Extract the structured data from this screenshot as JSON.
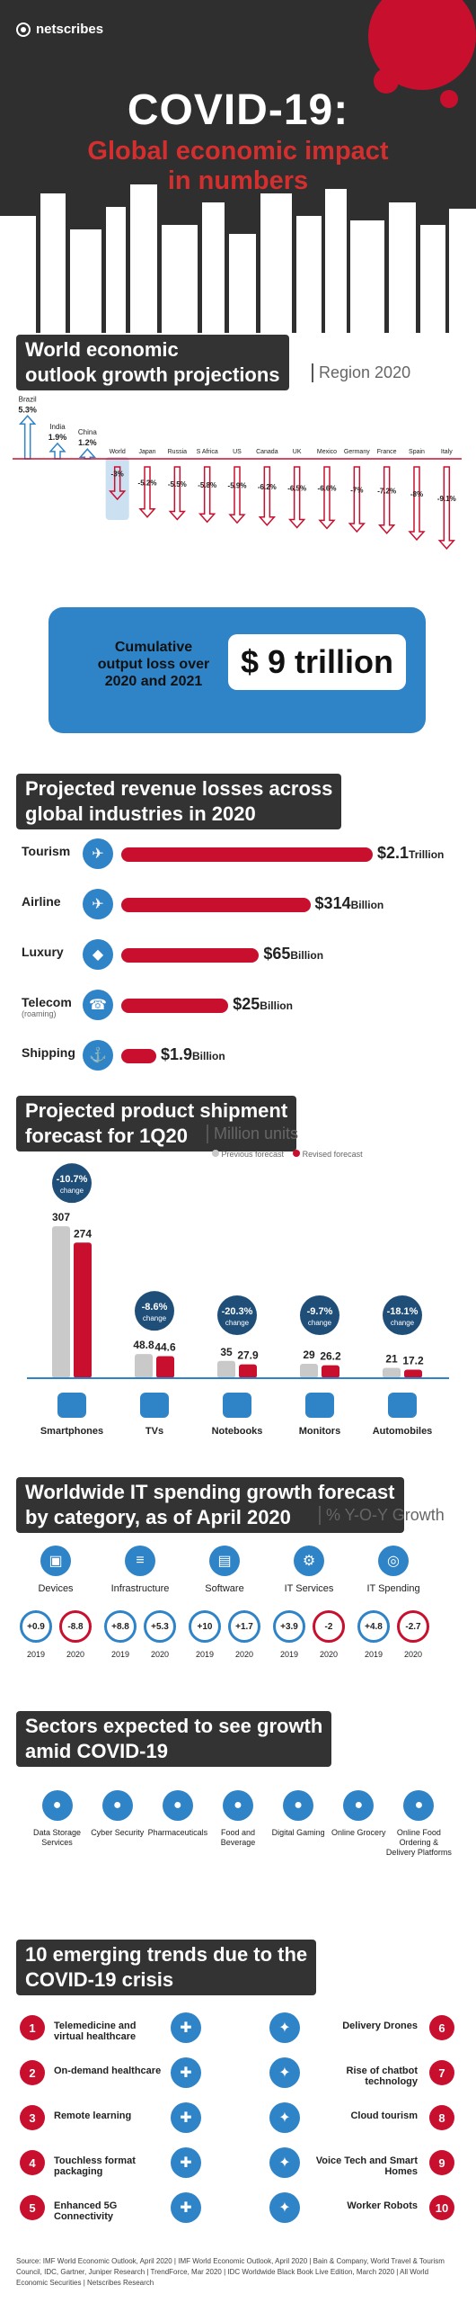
{
  "header": {
    "logo_text": "netscribes",
    "title": "COVID-19:",
    "subtitle_line1": "Global economic impact",
    "subtitle_line2": "in numbers"
  },
  "section_outlook": {
    "title_line1": "World economic",
    "title_line2": "outlook growth projections",
    "note": "Region  2020",
    "cumulative_text_line1": "Cumulative",
    "cumulative_text_line2": "output loss over",
    "cumulative_text_line3": "2020 and 2021",
    "cumulative_value": "$ 9 trillion"
  },
  "section_revenue": {
    "title_line1": "Projected revenue losses across",
    "title_line2": "global industries in 2020",
    "items": [
      {
        "label": "Tourism",
        "value": "$2.1",
        "unit": "Trillion"
      },
      {
        "label": "Airline",
        "value": "$314",
        "unit": "Billion"
      },
      {
        "label": "Luxury",
        "value": "$65",
        "unit": "Billion"
      },
      {
        "label": "Telecom",
        "sub": "(roaming)",
        "value": "$25",
        "unit": "Billion"
      },
      {
        "label": "Shipping",
        "value": "$1.9",
        "unit": "Billion"
      }
    ]
  },
  "section_shipment": {
    "title_line1": "Projected product shipment",
    "title_line2": "forecast for 1Q20",
    "note": "Million units",
    "legend_previous": "Previous forecast",
    "legend_revised": "Revised forecast"
  },
  "section_it": {
    "title_line1": "Worldwide IT spending growth forecast",
    "title_line2": "by category, as of April 2020",
    "note": "% Y-O-Y Growth",
    "categories": [
      {
        "label": "Devices",
        "y2019": "+0.9",
        "y2020": "-8.8"
      },
      {
        "label": "Infrastructure",
        "y2019": "+8.8",
        "y2020": "+5.3"
      },
      {
        "label": "Software",
        "y2019": "+10",
        "y2020": "+1.7"
      },
      {
        "label": "IT Services",
        "y2019": "+3.9",
        "y2020": "-2"
      },
      {
        "label": "IT Spending",
        "y2019": "+4.8",
        "y2020": "-2.7"
      }
    ],
    "year1": "2019",
    "year2": "2020"
  },
  "section_sectors": {
    "title_line1": "Sectors expected to see growth",
    "title_line2": "amid COVID-19",
    "items": [
      "Data Storage Services",
      "Cyber Security",
      "Pharmaceuticals",
      "Food and Beverage",
      "Digital Gaming",
      "Online Grocery",
      "Online Food Ordering & Delivery Platforms"
    ]
  },
  "section_trends": {
    "title_line1": "10 emerging trends due to the",
    "title_line2": "COVID-19 crisis",
    "left": [
      "Telemedicine and virtual healthcare",
      "On-demand healthcare",
      "Remote learning",
      "Touchless format packaging",
      "Enhanced 5G Connectivity"
    ],
    "right": [
      "Delivery Drones",
      "Rise of chatbot technology",
      "Cloud tourism",
      "Voice Tech and Smart Homes",
      "Worker Robots"
    ]
  },
  "footer": {
    "source": "Source: IMF World Economic Outlook, April 2020 | IMF World Economic Outlook, April 2020 | Bain & Company, World Travel & Tourism Council, IDC, Gartner, Juniper Research | TrendForce, Mar 2020 | IDC Worldwide Black Book Live Edition, March 2020 | All World Economic Securities | Netscribes Research"
  },
  "colors": {
    "accent_red": "#c8102e",
    "accent_blue": "#2f83c7",
    "dark": "#333333",
    "gray_bar": "#c9c9c9"
  },
  "chart_data": [
    {
      "type": "bar",
      "title": "World economic outlook growth projections",
      "subtitle": "Region 2020",
      "categories": [
        "Brazil",
        "India",
        "China",
        "World",
        "Japan",
        "Russia",
        "S Africa",
        "US",
        "Canada",
        "UK",
        "Mexico",
        "Germany",
        "France",
        "Spain",
        "Italy"
      ],
      "values": [
        5.3,
        1.9,
        1.2,
        -3,
        -5.2,
        -5.5,
        -5.8,
        -5.9,
        -6.2,
        -6.5,
        -6.6,
        -7,
        -7.2,
        -8,
        -9.1
      ],
      "unit": "%"
    },
    {
      "type": "bar",
      "title": "Projected revenue losses across global industries in 2020",
      "categories": [
        "Tourism",
        "Airline",
        "Luxury",
        "Telecom (roaming)",
        "Shipping"
      ],
      "values_billion": [
        2100,
        314,
        65,
        25,
        1.9
      ]
    },
    {
      "type": "bar",
      "title": "Projected product shipment forecast for 1Q20",
      "subtitle": "Million units",
      "categories": [
        "Smartphones",
        "TVs",
        "Notebooks",
        "Monitors",
        "Automobiles"
      ],
      "series": [
        {
          "name": "Previous forecast",
          "values": [
            307,
            48.8,
            35,
            29,
            21
          ]
        },
        {
          "name": "Revised forecast",
          "values": [
            274,
            44.6,
            27.9,
            26.2,
            17.2
          ]
        }
      ],
      "change": [
        "-10.7%",
        "-8.6%",
        "-20.3%",
        "-9.7%",
        "-18.1%"
      ],
      "change_label": "change"
    }
  ]
}
